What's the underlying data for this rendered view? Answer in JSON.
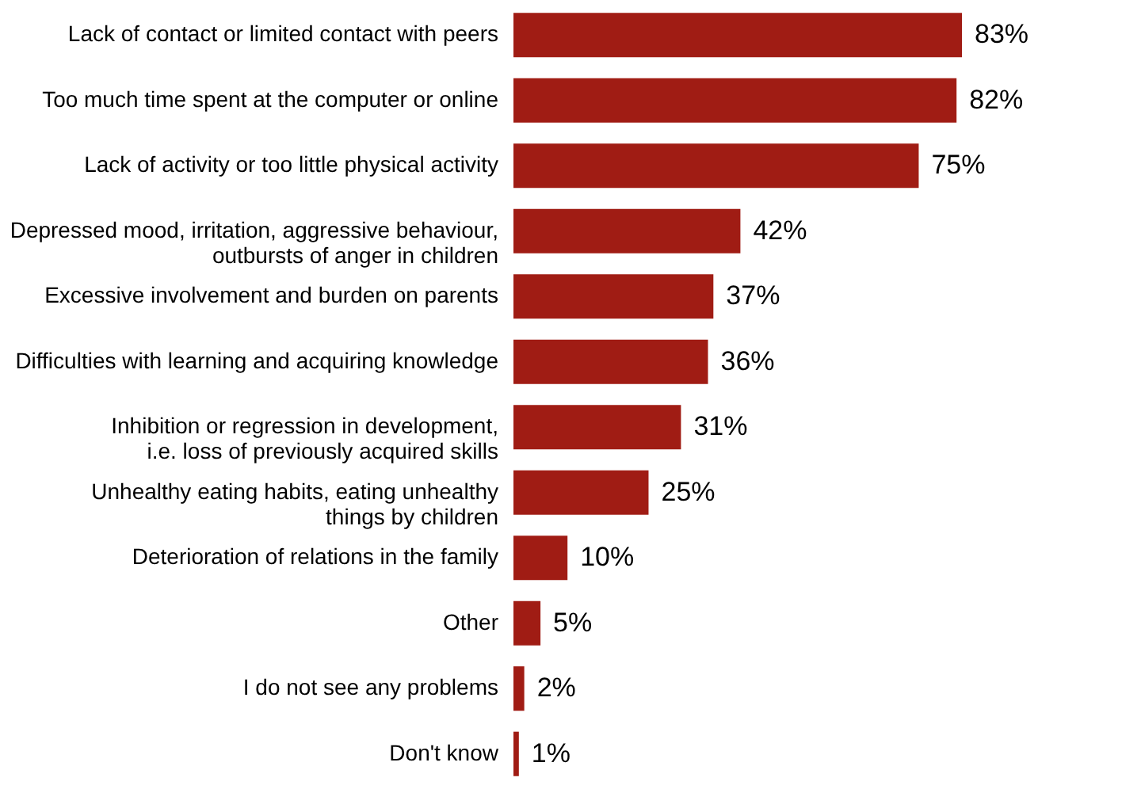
{
  "chart_data": {
    "type": "bar",
    "orientation": "horizontal",
    "data_labels": true,
    "color": "#a01c14",
    "categories": [
      "Lack of contact or limited contact with peers",
      "Too much time spent at the computer or online",
      "Lack of activity or too little physical activity",
      "Depressed mood, irritation, aggressive behaviour,\noutbursts of anger in children",
      "Excessive involvement and burden on parents",
      "Difficulties with learning and acquiring knowledge",
      "Inhibition or regression in development,\ni.e. loss of previously acquired skills",
      "Unhealthy eating habits, eating unhealthy\nthings by children",
      "Deterioration of relations in the family",
      "Other",
      "I do not see any problems",
      "Don't know"
    ],
    "values": [
      83,
      82,
      75,
      42,
      37,
      36,
      31,
      25,
      10,
      5,
      2,
      1
    ],
    "value_labels": [
      "83%",
      "82%",
      "75%",
      "42%",
      "37%",
      "36%",
      "31%",
      "25%",
      "10%",
      "5%",
      "2%",
      "1%"
    ]
  }
}
